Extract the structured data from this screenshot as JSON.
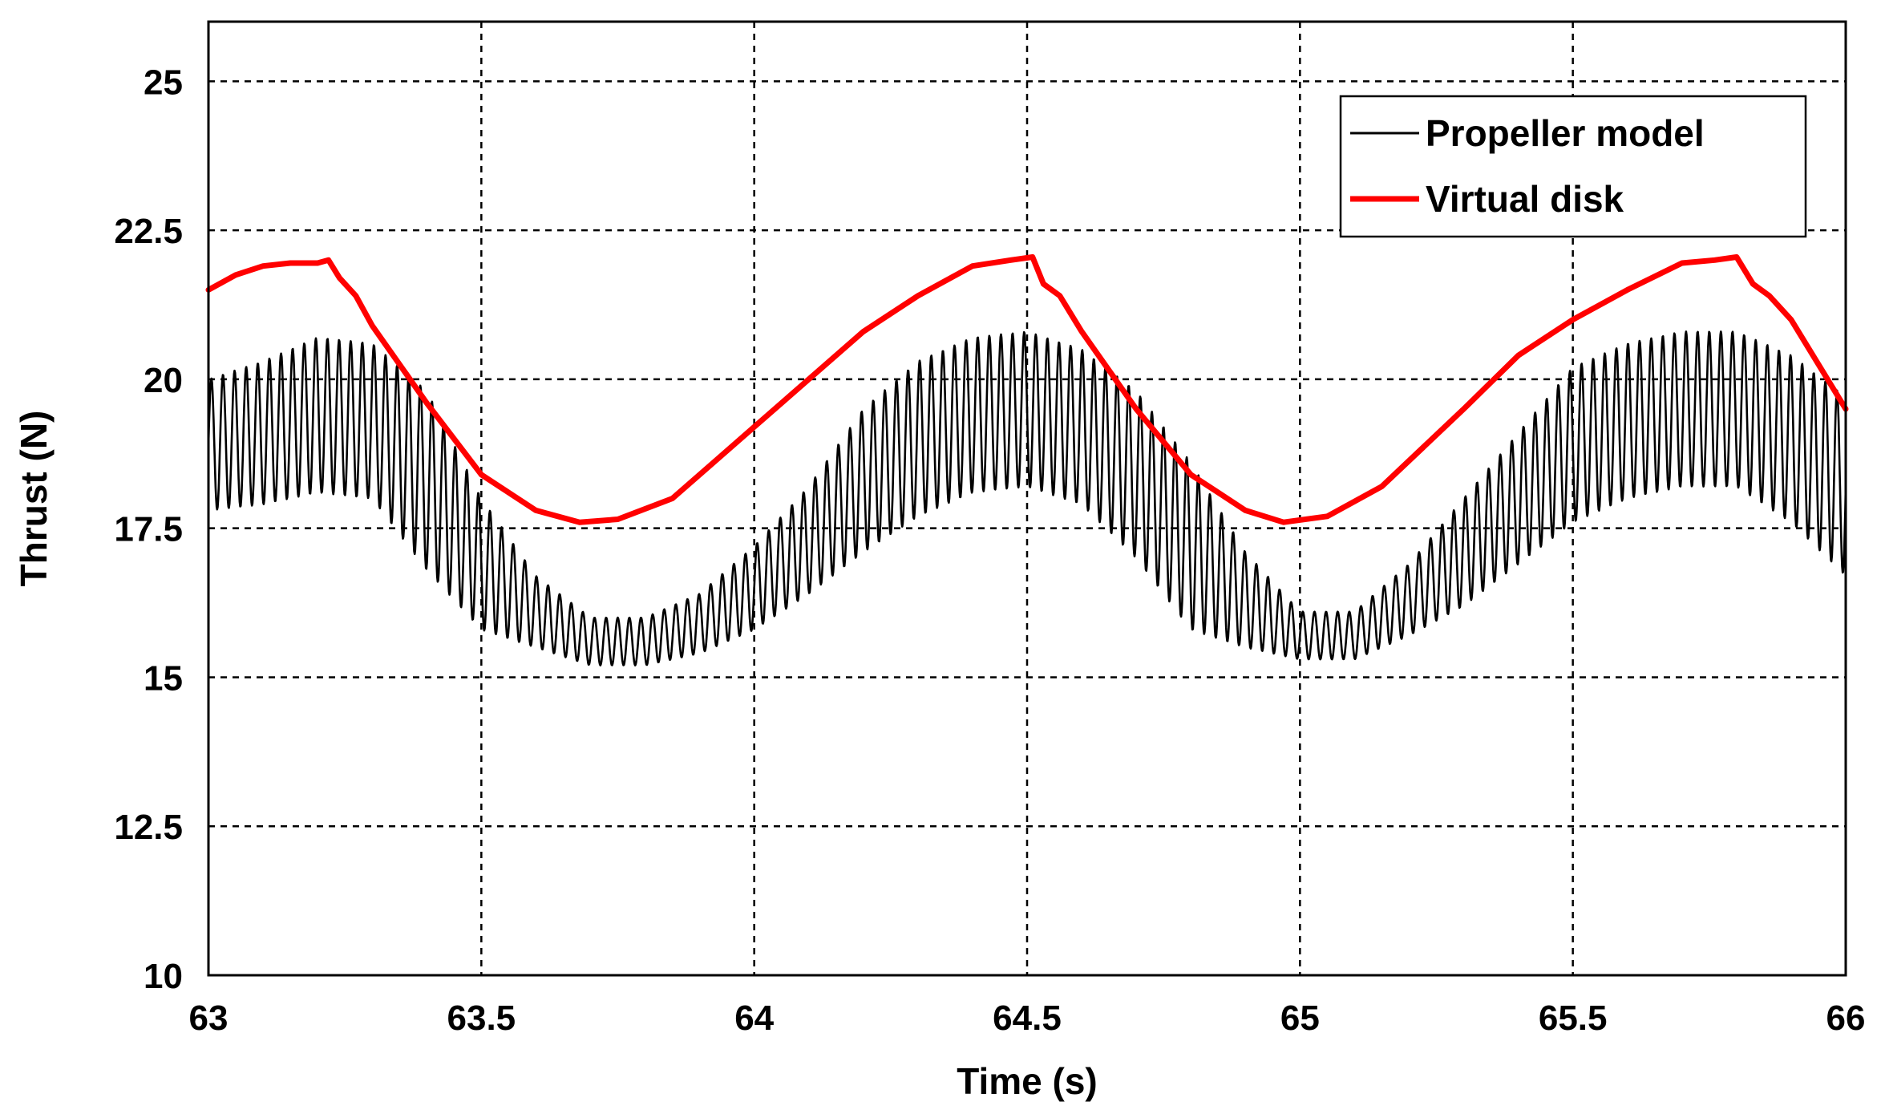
{
  "chart_data": {
    "type": "line",
    "title": "",
    "xlabel": "Time (s)",
    "ylabel": "Thrust (N)",
    "xlim": [
      63,
      66
    ],
    "ylim": [
      10,
      26
    ],
    "grid": true,
    "legend_position": "top-right",
    "x_ticks": [
      63,
      63.5,
      64,
      64.5,
      65,
      65.5,
      66
    ],
    "x_tick_labels": [
      "63",
      "63.5",
      "64",
      "64.5",
      "65",
      "65.5",
      "66"
    ],
    "y_ticks": [
      10,
      12.5,
      15,
      17.5,
      20,
      22.5,
      25
    ],
    "y_tick_labels": [
      "10",
      "12.5",
      "15",
      "17.5",
      "20",
      "22.5",
      "25"
    ],
    "series": [
      {
        "name": "Propeller model",
        "color": "#000000",
        "description": "high-frequency oscillation around a slow periodic mean",
        "period_s": 1.3,
        "oscillation_frequency_hz": 47,
        "envelope": {
          "time": [
            63.0,
            63.1,
            63.2,
            63.3,
            63.4,
            63.5,
            63.6,
            63.7,
            63.8,
            63.9,
            64.0,
            64.1,
            64.2,
            64.3,
            64.4,
            64.5,
            64.6,
            64.7,
            64.8,
            64.9,
            65.0,
            65.1,
            65.2,
            65.3,
            65.4,
            65.5,
            65.6,
            65.7,
            65.8,
            65.9,
            66.0
          ],
          "mean": [
            18.9,
            19.1,
            19.4,
            19.3,
            18.3,
            16.9,
            16.1,
            15.6,
            15.6,
            15.9,
            16.5,
            17.3,
            18.3,
            19.0,
            19.4,
            19.5,
            19.2,
            18.4,
            17.2,
            16.3,
            15.7,
            15.7,
            16.3,
            17.1,
            18.0,
            18.9,
            19.3,
            19.5,
            19.5,
            19.0,
            18.2
          ],
          "amplitude": [
            1.1,
            1.2,
            1.3,
            1.3,
            1.5,
            1.1,
            0.6,
            0.4,
            0.4,
            0.5,
            0.7,
            0.9,
            1.2,
            1.3,
            1.3,
            1.3,
            1.3,
            1.4,
            1.4,
            0.8,
            0.4,
            0.4,
            0.6,
            0.9,
            1.1,
            1.3,
            1.3,
            1.3,
            1.3,
            1.4,
            1.5
          ]
        }
      },
      {
        "name": "Virtual disk",
        "color": "#ff0000",
        "time": [
          63.0,
          63.05,
          63.1,
          63.15,
          63.2,
          63.22,
          63.24,
          63.27,
          63.3,
          63.4,
          63.5,
          63.6,
          63.68,
          63.75,
          63.85,
          64.0,
          64.1,
          64.2,
          64.3,
          64.4,
          64.47,
          64.51,
          64.53,
          64.56,
          64.6,
          64.7,
          64.8,
          64.9,
          64.97,
          65.05,
          65.15,
          65.3,
          65.4,
          65.5,
          65.6,
          65.7,
          65.76,
          65.8,
          65.83,
          65.86,
          65.9,
          66.0
        ],
        "values": [
          21.5,
          21.75,
          21.9,
          21.95,
          21.95,
          22.0,
          21.7,
          21.4,
          20.9,
          19.6,
          18.4,
          17.8,
          17.6,
          17.65,
          18.0,
          19.2,
          20.0,
          20.8,
          21.4,
          21.9,
          22.0,
          22.05,
          21.6,
          21.4,
          20.8,
          19.5,
          18.4,
          17.8,
          17.6,
          17.7,
          18.2,
          19.5,
          20.4,
          21.0,
          21.5,
          21.95,
          22.0,
          22.05,
          21.6,
          21.4,
          21.0,
          19.5
        ]
      }
    ]
  }
}
